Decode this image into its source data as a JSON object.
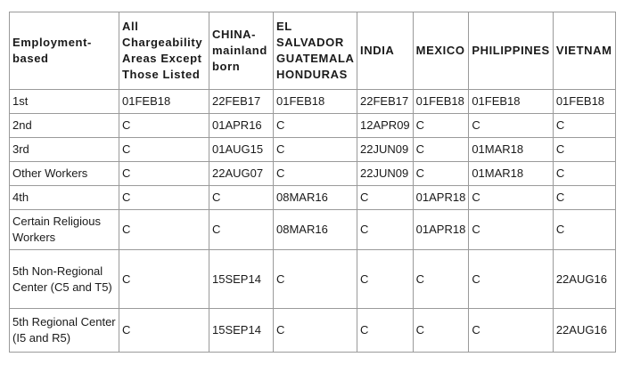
{
  "headers": [
    "Employment-based",
    "All Chargeability Areas Except Those Listed",
    "CHINA-mainland born",
    "EL SALVADOR GUATEMALA HONDURAS",
    "INDIA",
    "MEXICO",
    "PHILIPPINES",
    "VIETNAM"
  ],
  "rows": [
    [
      "1st",
      "01FEB18",
      "22FEB17",
      "01FEB18",
      "22FEB17",
      "01FEB18",
      "01FEB18",
      "01FEB18"
    ],
    [
      "2nd",
      "C",
      "01APR16",
      "C",
      "12APR09",
      "C",
      "C",
      "C"
    ],
    [
      "3rd",
      "C",
      "01AUG15",
      "C",
      "22JUN09",
      "C",
      "01MAR18",
      "C"
    ],
    [
      "Other Workers",
      "C",
      "22AUG07",
      "C",
      "22JUN09",
      "C",
      "01MAR18",
      "C"
    ],
    [
      "4th",
      "C",
      "C",
      "08MAR16",
      "C",
      "01APR18",
      "C",
      "C"
    ],
    [
      "Certain Religious Workers",
      "C",
      "C",
      "08MAR16",
      "C",
      "01APR18",
      "C",
      "C"
    ],
    [
      "5th Non-Regional Center (C5 and T5)",
      "C",
      "15SEP14",
      "C",
      "C",
      "C",
      "C",
      "22AUG16"
    ],
    [
      "5th Regional Center (I5 and R5)",
      "C",
      "15SEP14",
      "C",
      "C",
      "C",
      "C",
      "22AUG16"
    ]
  ]
}
